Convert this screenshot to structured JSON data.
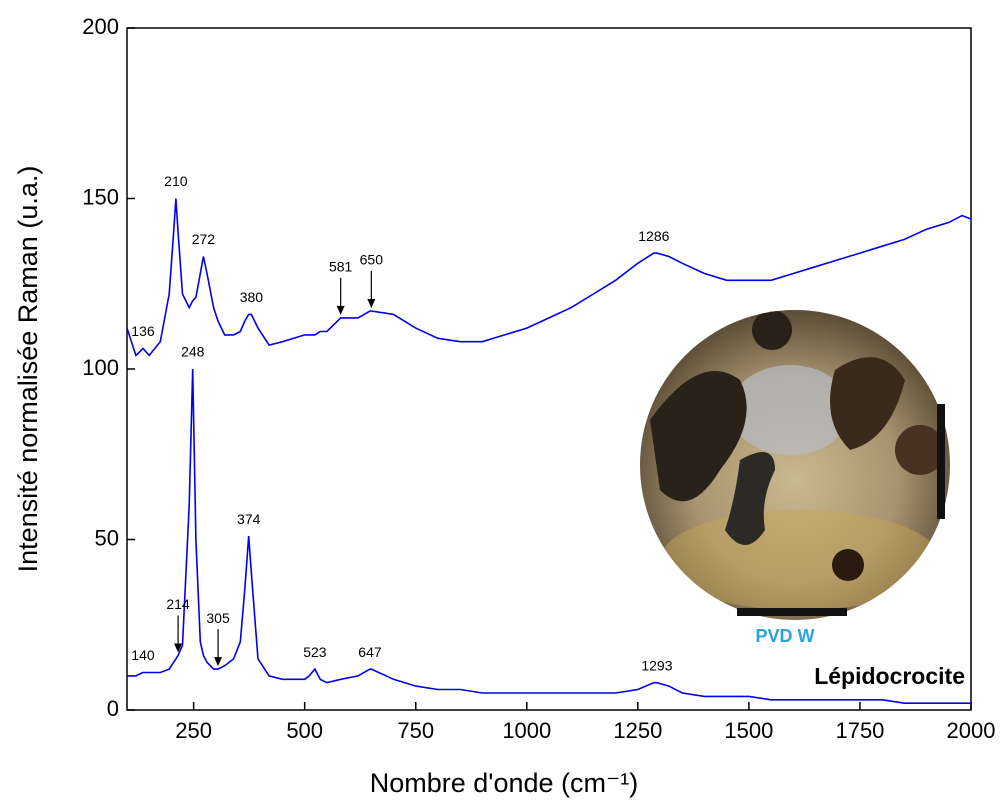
{
  "chart_data": {
    "type": "line",
    "xlabel": "Nombre d'onde (cm⁻¹)",
    "ylabel": "Intensité normalisée Raman (u.a.)",
    "xlim": [
      100,
      2000
    ],
    "ylim": [
      0,
      200
    ],
    "xticks": [
      250,
      500,
      750,
      1000,
      1250,
      1500,
      1750,
      2000
    ],
    "yticks": [
      0,
      50,
      100,
      150,
      200
    ],
    "x": [
      100,
      120,
      136,
      150,
      175,
      195,
      205,
      210,
      215,
      225,
      240,
      248,
      255,
      265,
      272,
      280,
      295,
      305,
      320,
      340,
      355,
      365,
      374,
      380,
      395,
      420,
      450,
      500,
      510,
      523,
      535,
      550,
      581,
      620,
      647,
      650,
      700,
      750,
      800,
      850,
      900,
      950,
      1000,
      1050,
      1100,
      1150,
      1200,
      1250,
      1286,
      1293,
      1320,
      1350,
      1400,
      1450,
      1500,
      1550,
      1600,
      1650,
      1700,
      1750,
      1800,
      1850,
      1900,
      1950,
      1980,
      2000
    ],
    "series": [
      {
        "color": "#0000ee",
        "values": [
          112,
          104,
          106,
          104,
          108,
          122,
          140,
          150,
          140,
          122,
          118,
          120,
          121,
          128,
          133,
          128,
          118,
          114,
          110,
          110,
          111,
          114,
          116,
          116,
          112,
          107,
          108,
          110,
          110,
          110,
          111,
          111,
          115,
          115,
          117,
          117,
          116,
          112,
          109,
          108,
          108,
          110,
          112,
          115,
          118,
          122,
          126,
          131,
          134,
          134,
          133,
          131,
          128,
          126,
          126,
          126,
          128,
          130,
          132,
          134,
          136,
          138,
          141,
          143,
          145,
          144
        ],
        "annotations": [
          {
            "text": "136"
          },
          {
            "text": "210"
          },
          {
            "text": "272"
          },
          {
            "text": "380"
          },
          {
            "text": "581",
            "arrow": true
          },
          {
            "text": "650",
            "arrow": true
          },
          {
            "text": "1286"
          }
        ]
      },
      {
        "color": "#0000ee",
        "values": [
          10,
          10,
          11,
          11,
          11,
          12,
          14,
          15,
          16,
          19,
          60,
          100,
          50,
          20,
          16,
          14,
          12,
          12,
          13,
          15,
          20,
          35,
          51,
          40,
          15,
          10,
          9,
          9,
          10,
          12,
          9,
          8,
          9,
          10,
          12,
          12,
          9,
          7,
          6,
          6,
          5,
          5,
          5,
          5,
          5,
          5,
          5,
          6,
          8,
          8,
          7,
          5,
          4,
          4,
          4,
          3,
          3,
          3,
          3,
          3,
          3,
          2,
          2,
          2,
          2,
          2
        ],
        "annotations": [
          {
            "text": "140"
          },
          {
            "text": "214",
            "arrow": true
          },
          {
            "text": "248"
          },
          {
            "text": "305",
            "arrow": true
          },
          {
            "text": "374"
          },
          {
            "text": "523"
          },
          {
            "text": "647"
          },
          {
            "text": "1293"
          }
        ]
      }
    ],
    "inset_caption": "PVD W",
    "sample_label": "Lépidocrocite"
  }
}
